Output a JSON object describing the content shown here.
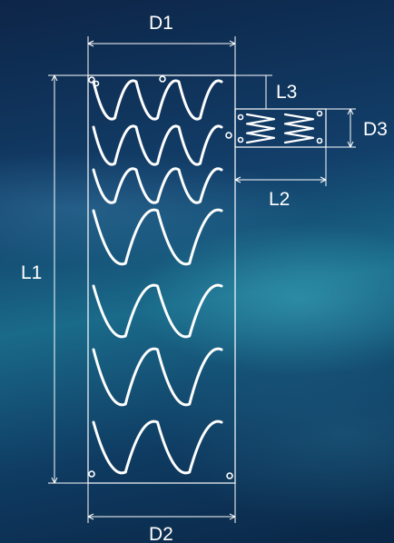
{
  "diagram": {
    "labels": {
      "d1": "D1",
      "d2": "D2",
      "d3": "D3",
      "l1": "L1",
      "l2": "L2",
      "l3": "L3"
    },
    "main_body": {
      "crown_rows": [
        {
          "crowns": 3
        },
        {
          "crowns": 3
        },
        {
          "crowns": 3
        },
        {
          "crowns": 2
        },
        {
          "crowns": 2
        },
        {
          "crowns": 2
        },
        {
          "crowns": 2
        }
      ]
    },
    "side_branch": {
      "crowns": 3
    },
    "colors": {
      "background_top": "#0d2548",
      "background_mid": "#1a6a8a",
      "line": "#ffffff"
    }
  }
}
